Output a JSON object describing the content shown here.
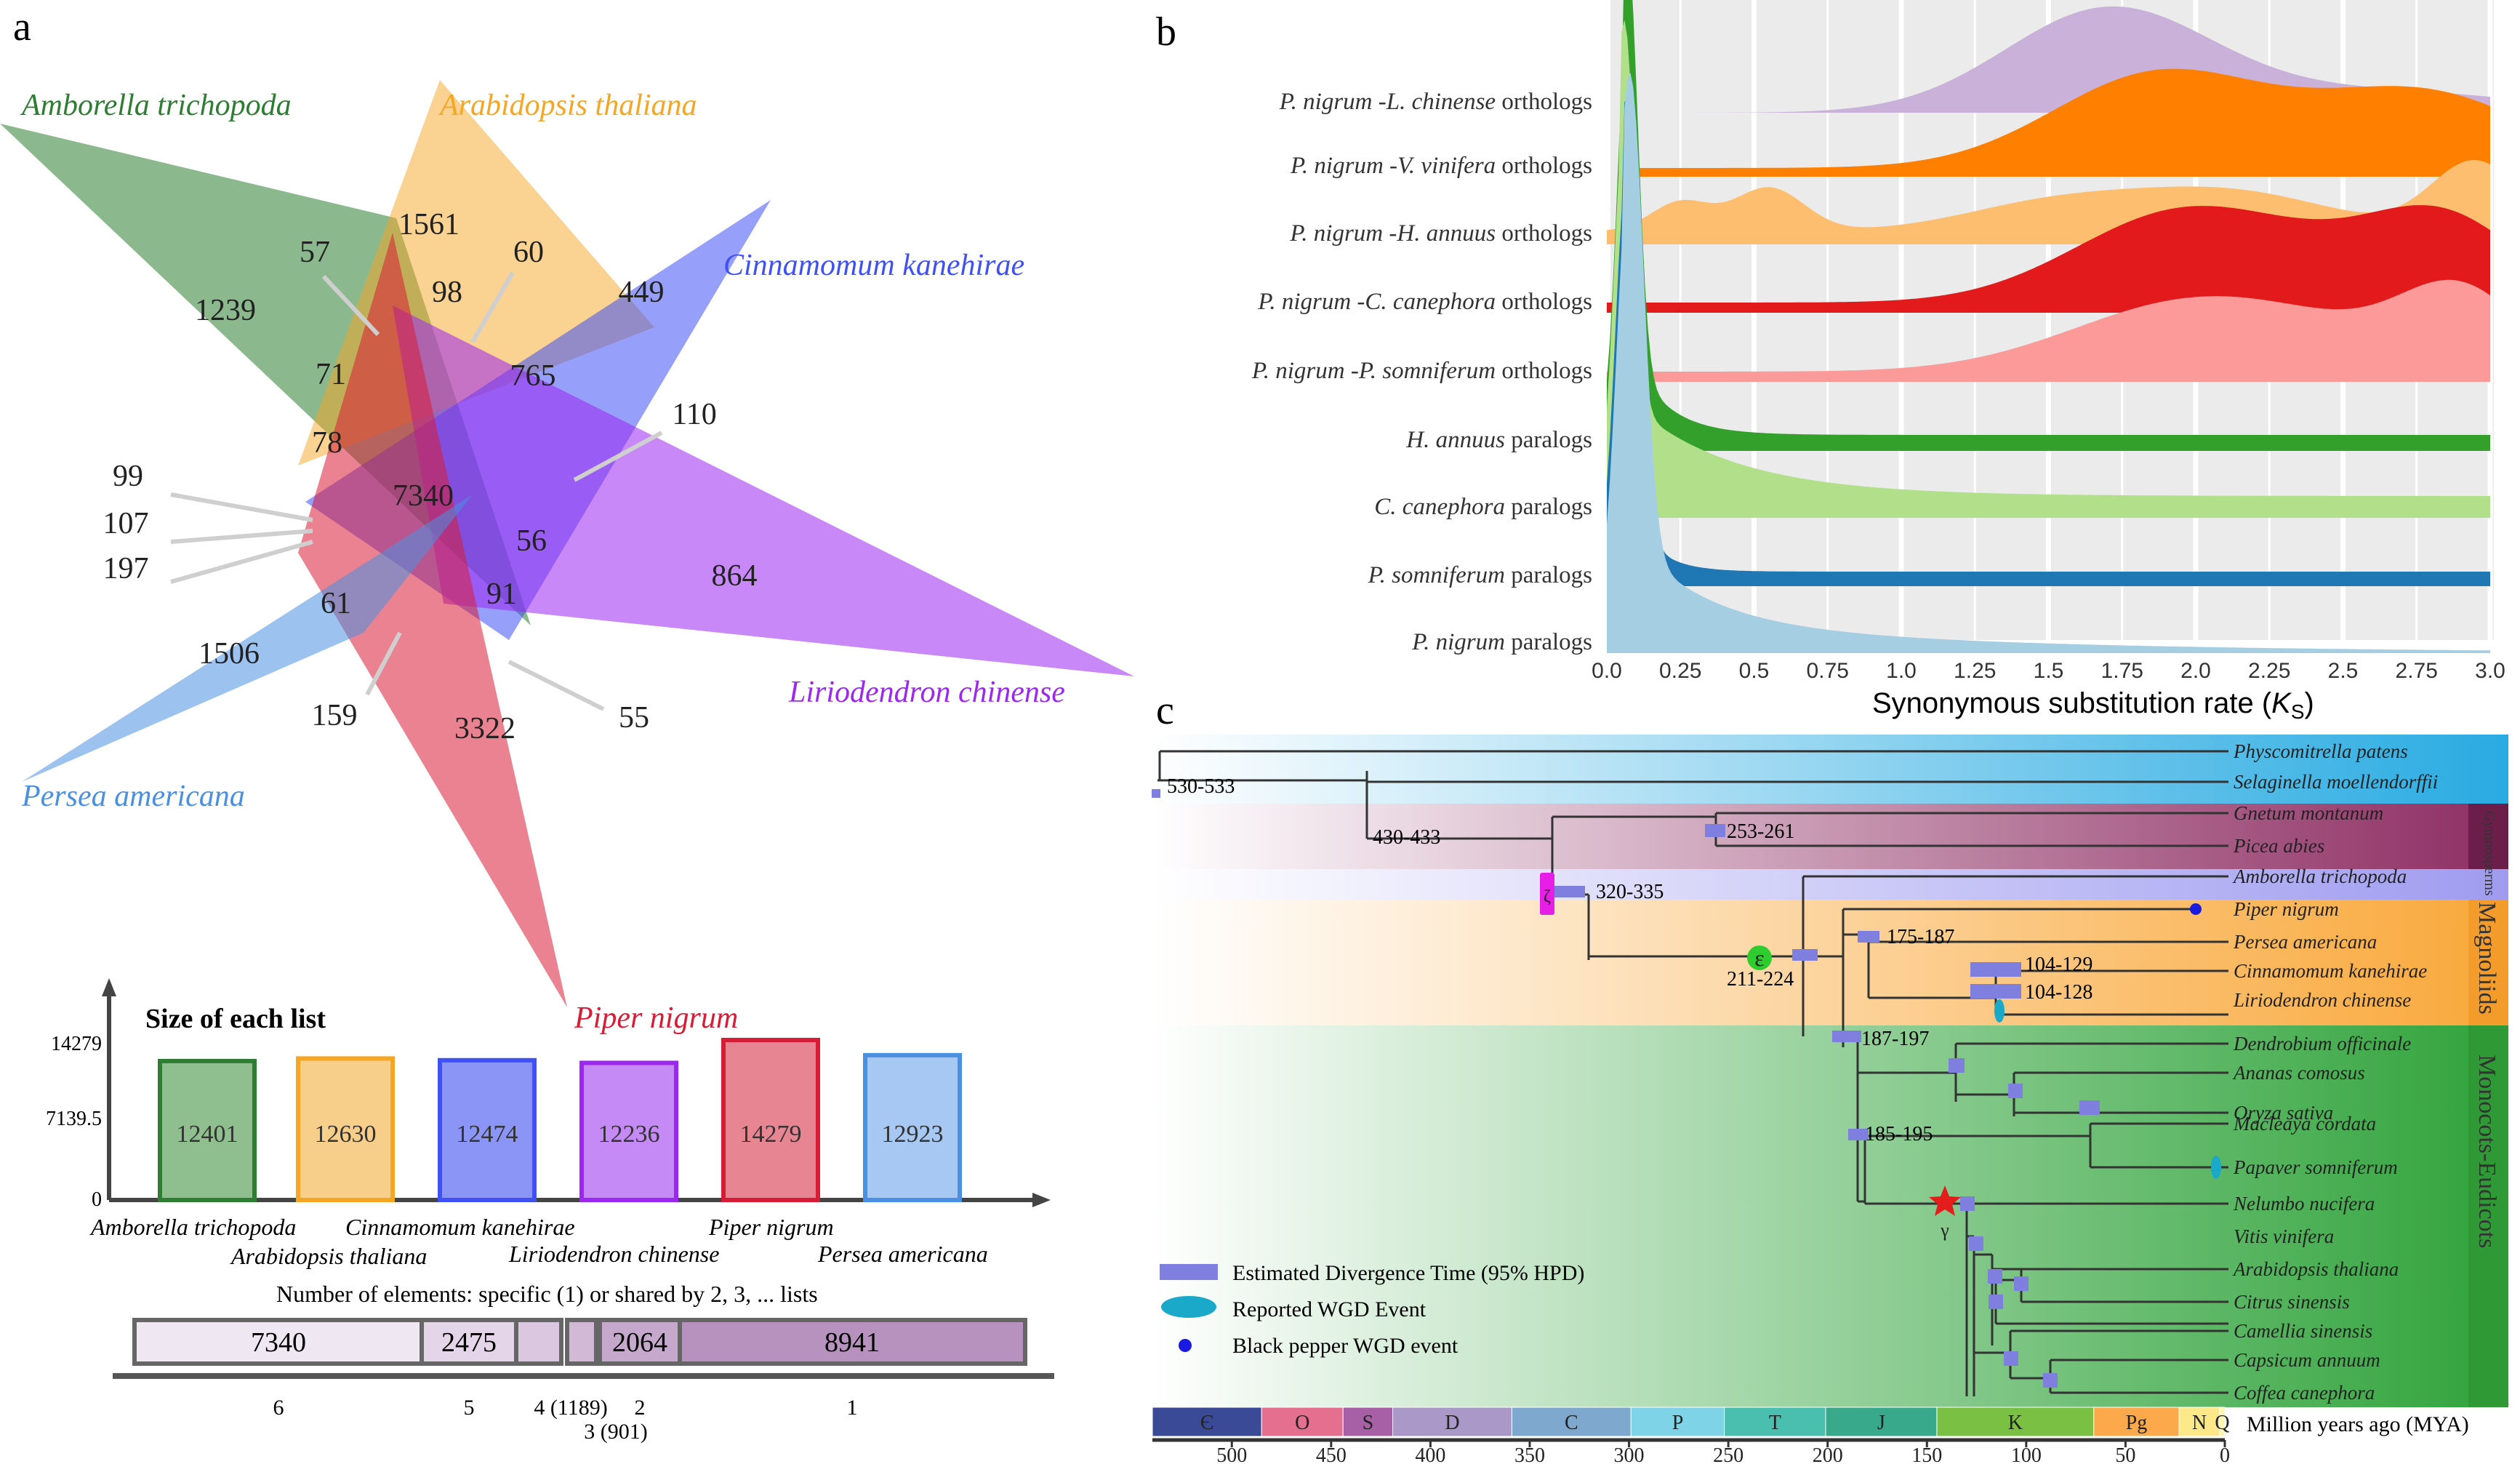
{
  "panel_a": {
    "label": "a",
    "species": [
      {
        "name": "Amborella trichopoda",
        "color": "#2e7d32"
      },
      {
        "name": "Arabidopsis thaliana",
        "color": "#f5a623"
      },
      {
        "name": "Cinnamomum kanehirae",
        "color": "#3f51f5"
      },
      {
        "name": "Liriodendron chinense",
        "color": "#9c27f0"
      },
      {
        "name": "Piper nigrum",
        "color": "#d81b36"
      },
      {
        "name": "Persea americana",
        "color": "#4a90e2"
      }
    ],
    "region_counts": [
      "1239",
      "1561",
      "57",
      "60",
      "98",
      "449",
      "71",
      "765",
      "110",
      "78",
      "7340",
      "99",
      "107",
      "197",
      "56",
      "864",
      "61",
      "91",
      "1506",
      "159",
      "3322",
      "55"
    ],
    "bar_title": "Size of each list",
    "bar_yticks": [
      "14279",
      "7139.5",
      "0"
    ],
    "bar_values": [
      12401,
      12630,
      12474,
      12236,
      14279,
      12923
    ],
    "bar_labels": [
      "12401",
      "12630",
      "12474",
      "12236",
      "14279",
      "12923"
    ],
    "bar_ymax": 14279,
    "bar_colors": [
      "#2e7d32",
      "#f5a623",
      "#3f51f5",
      "#9c27f0",
      "#d81b36",
      "#4a90e2"
    ],
    "bar_fill": [
      "#8fbf8f",
      "#f8cf8a",
      "#8a95f5",
      "#c58af5",
      "#e88593",
      "#a6c8f2"
    ],
    "shared_title": "Number of elements: specific (1) or shared by 2, 3, ... lists",
    "shared_bar": [
      {
        "value": "7340"
      },
      {
        "value": "2475"
      },
      {
        "value": ""
      },
      {
        "value": ""
      },
      {
        "value": "2064"
      },
      {
        "value": "8941"
      }
    ],
    "shared_ticks": [
      "6",
      "5",
      "4 (1189)",
      "3 (901)",
      "2",
      "1"
    ]
  },
  "panel_b": {
    "label": "b",
    "rows": [
      {
        "sp": "P. nigrum",
        "sep": "-",
        "sp2": "L. chinense",
        "suffix": "orthologs",
        "color": "#c9b1d9"
      },
      {
        "sp": "P. nigrum",
        "sep": "-",
        "sp2": "V. vinifera",
        "suffix": "orthologs",
        "color": "#ff7f00"
      },
      {
        "sp": "P. nigrum",
        "sep": "-",
        "sp2": "H. annuus",
        "suffix": "orthologs",
        "color": "#fdbf6f"
      },
      {
        "sp": "P. nigrum",
        "sep": "-",
        "sp2": "C. canephora",
        "suffix": "orthologs",
        "color": "#e31a1c"
      },
      {
        "sp": "P. nigrum",
        "sep": "-",
        "sp2": "P. somniferum",
        "suffix": "orthologs",
        "color": "#fb9a99"
      },
      {
        "sp": "H. annuus",
        "sep": "",
        "sp2": "",
        "suffix": "paralogs",
        "color": "#33a02c"
      },
      {
        "sp": "C. canephora",
        "sep": "",
        "sp2": "",
        "suffix": "paralogs",
        "color": "#b2df8a"
      },
      {
        "sp": "P. somniferum",
        "sep": "",
        "sp2": "",
        "suffix": "paralogs",
        "color": "#1f78b4"
      },
      {
        "sp": "P. nigrum",
        "sep": "",
        "sp2": "",
        "suffix": "paralogs",
        "color": "#a6cee3"
      }
    ],
    "xticks": [
      "0.0",
      "0.25",
      "0.5",
      "0.75",
      "1.0",
      "1.25",
      "1.5",
      "1.75",
      "2.0",
      "2.25",
      "2.5",
      "2.75",
      "3.0"
    ],
    "xlabel_pre": "Synonymous substitution rate (",
    "xlabel_k": "K",
    "xlabel_sub": "S",
    "xlabel_post": ")"
  },
  "panel_c": {
    "label": "c",
    "taxa": [
      "Physcomitrella patens",
      "Selaginella moellendorffii",
      "Gnetum montanum",
      "Picea abies",
      "Amborella trichopoda",
      "Piper nigrum",
      "Persea americana",
      "Cinnamomum kanehirae",
      "Liriodendron chinense",
      "Dendrobium officinale",
      "Ananas comosus",
      "Oryza sativa",
      "Macleaya cordata",
      "Papaver somniferum",
      "Nelumbo nucifera",
      "Vitis vinifera",
      "Arabidopsis thaliana",
      "Citrus sinensis",
      "Camellia sinensis",
      "Capsicum annuum",
      "Coffea canephora"
    ],
    "node_labels": [
      "530-533",
      "430-433",
      "253-261",
      "320-335",
      "211-224",
      "175-187",
      "104-129",
      "104-128",
      "187-197",
      "185-195"
    ],
    "greek": [
      "ζ",
      "ε",
      "γ"
    ],
    "clades": [
      "Gymnosperms",
      "Magnoliids",
      "Monocots-Eudicots"
    ],
    "legend": [
      "Estimated Divergence Time (95% HPD)",
      "Reported WGD Event",
      "Black pepper WGD event"
    ],
    "periods": [
      "Є",
      "O",
      "S",
      "D",
      "C",
      "P",
      "T",
      "J",
      "K",
      "Pg",
      "N",
      "Q"
    ],
    "period_colors": [
      "#3b4a96",
      "#e56f8e",
      "#a760a6",
      "#a998c8",
      "#7fa8cf",
      "#7ed4e6",
      "#4bbfaf",
      "#38a98a",
      "#7ac143",
      "#fba94b",
      "#fde88a",
      "#fff6b0"
    ],
    "time_ticks": [
      "500",
      "450",
      "400",
      "350",
      "300",
      "250",
      "200",
      "150",
      "100",
      "50",
      "0"
    ],
    "time_label": "Million years ago (MYA)",
    "colors": {
      "physco": "#29abe2",
      "gymno": "#8e2e63",
      "ambo": "#a8a6f0",
      "magno": "#f9a83a",
      "monoeu": "#3aa83c",
      "hpd": "#7f7fe0",
      "wgd": "#1aa9c9",
      "bp": "#1a1ae0"
    }
  }
}
